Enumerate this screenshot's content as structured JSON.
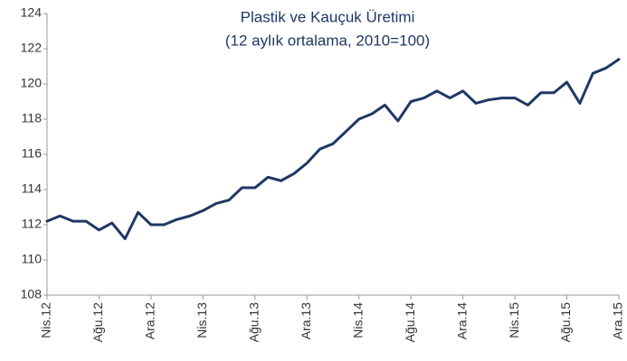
{
  "chart_data": {
    "type": "line",
    "title": "Plastik ve Kauçuk Üretimi",
    "subtitle": "(12 aylık ortalama, 2010=100)",
    "categories": [
      "Nis.12",
      null,
      null,
      null,
      "Ağu.12",
      null,
      null,
      null,
      "Ara.12",
      null,
      null,
      null,
      "Nis.13",
      null,
      null,
      null,
      "Ağu.13",
      null,
      null,
      null,
      "Ara.13",
      null,
      null,
      null,
      "Nis.14",
      null,
      null,
      null,
      "Ağu.14",
      null,
      null,
      null,
      "Ara.14",
      null,
      null,
      null,
      "Nis.15",
      null,
      null,
      null,
      "Ağu.15",
      null,
      null,
      null,
      "Ara.15"
    ],
    "series": [
      {
        "name": "Plastik ve Kauçuk Üretimi",
        "color": "#1f3864",
        "values": [
          112.2,
          112.5,
          112.2,
          112.2,
          111.7,
          112.1,
          111.2,
          112.7,
          112.0,
          112.0,
          112.3,
          112.5,
          112.8,
          113.2,
          113.4,
          114.1,
          114.1,
          114.7,
          114.5,
          114.9,
          115.5,
          116.3,
          116.6,
          117.3,
          118.0,
          118.3,
          118.8,
          117.9,
          119.0,
          119.2,
          119.6,
          119.2,
          119.6,
          118.9,
          119.1,
          119.2,
          119.2,
          118.8,
          119.5,
          119.5,
          120.1,
          118.9,
          120.6,
          120.9,
          121.4
        ]
      }
    ],
    "ylim": [
      108,
      124
    ],
    "yticks": [
      108,
      110,
      112,
      114,
      116,
      118,
      120,
      122,
      124
    ],
    "grid": false
  }
}
